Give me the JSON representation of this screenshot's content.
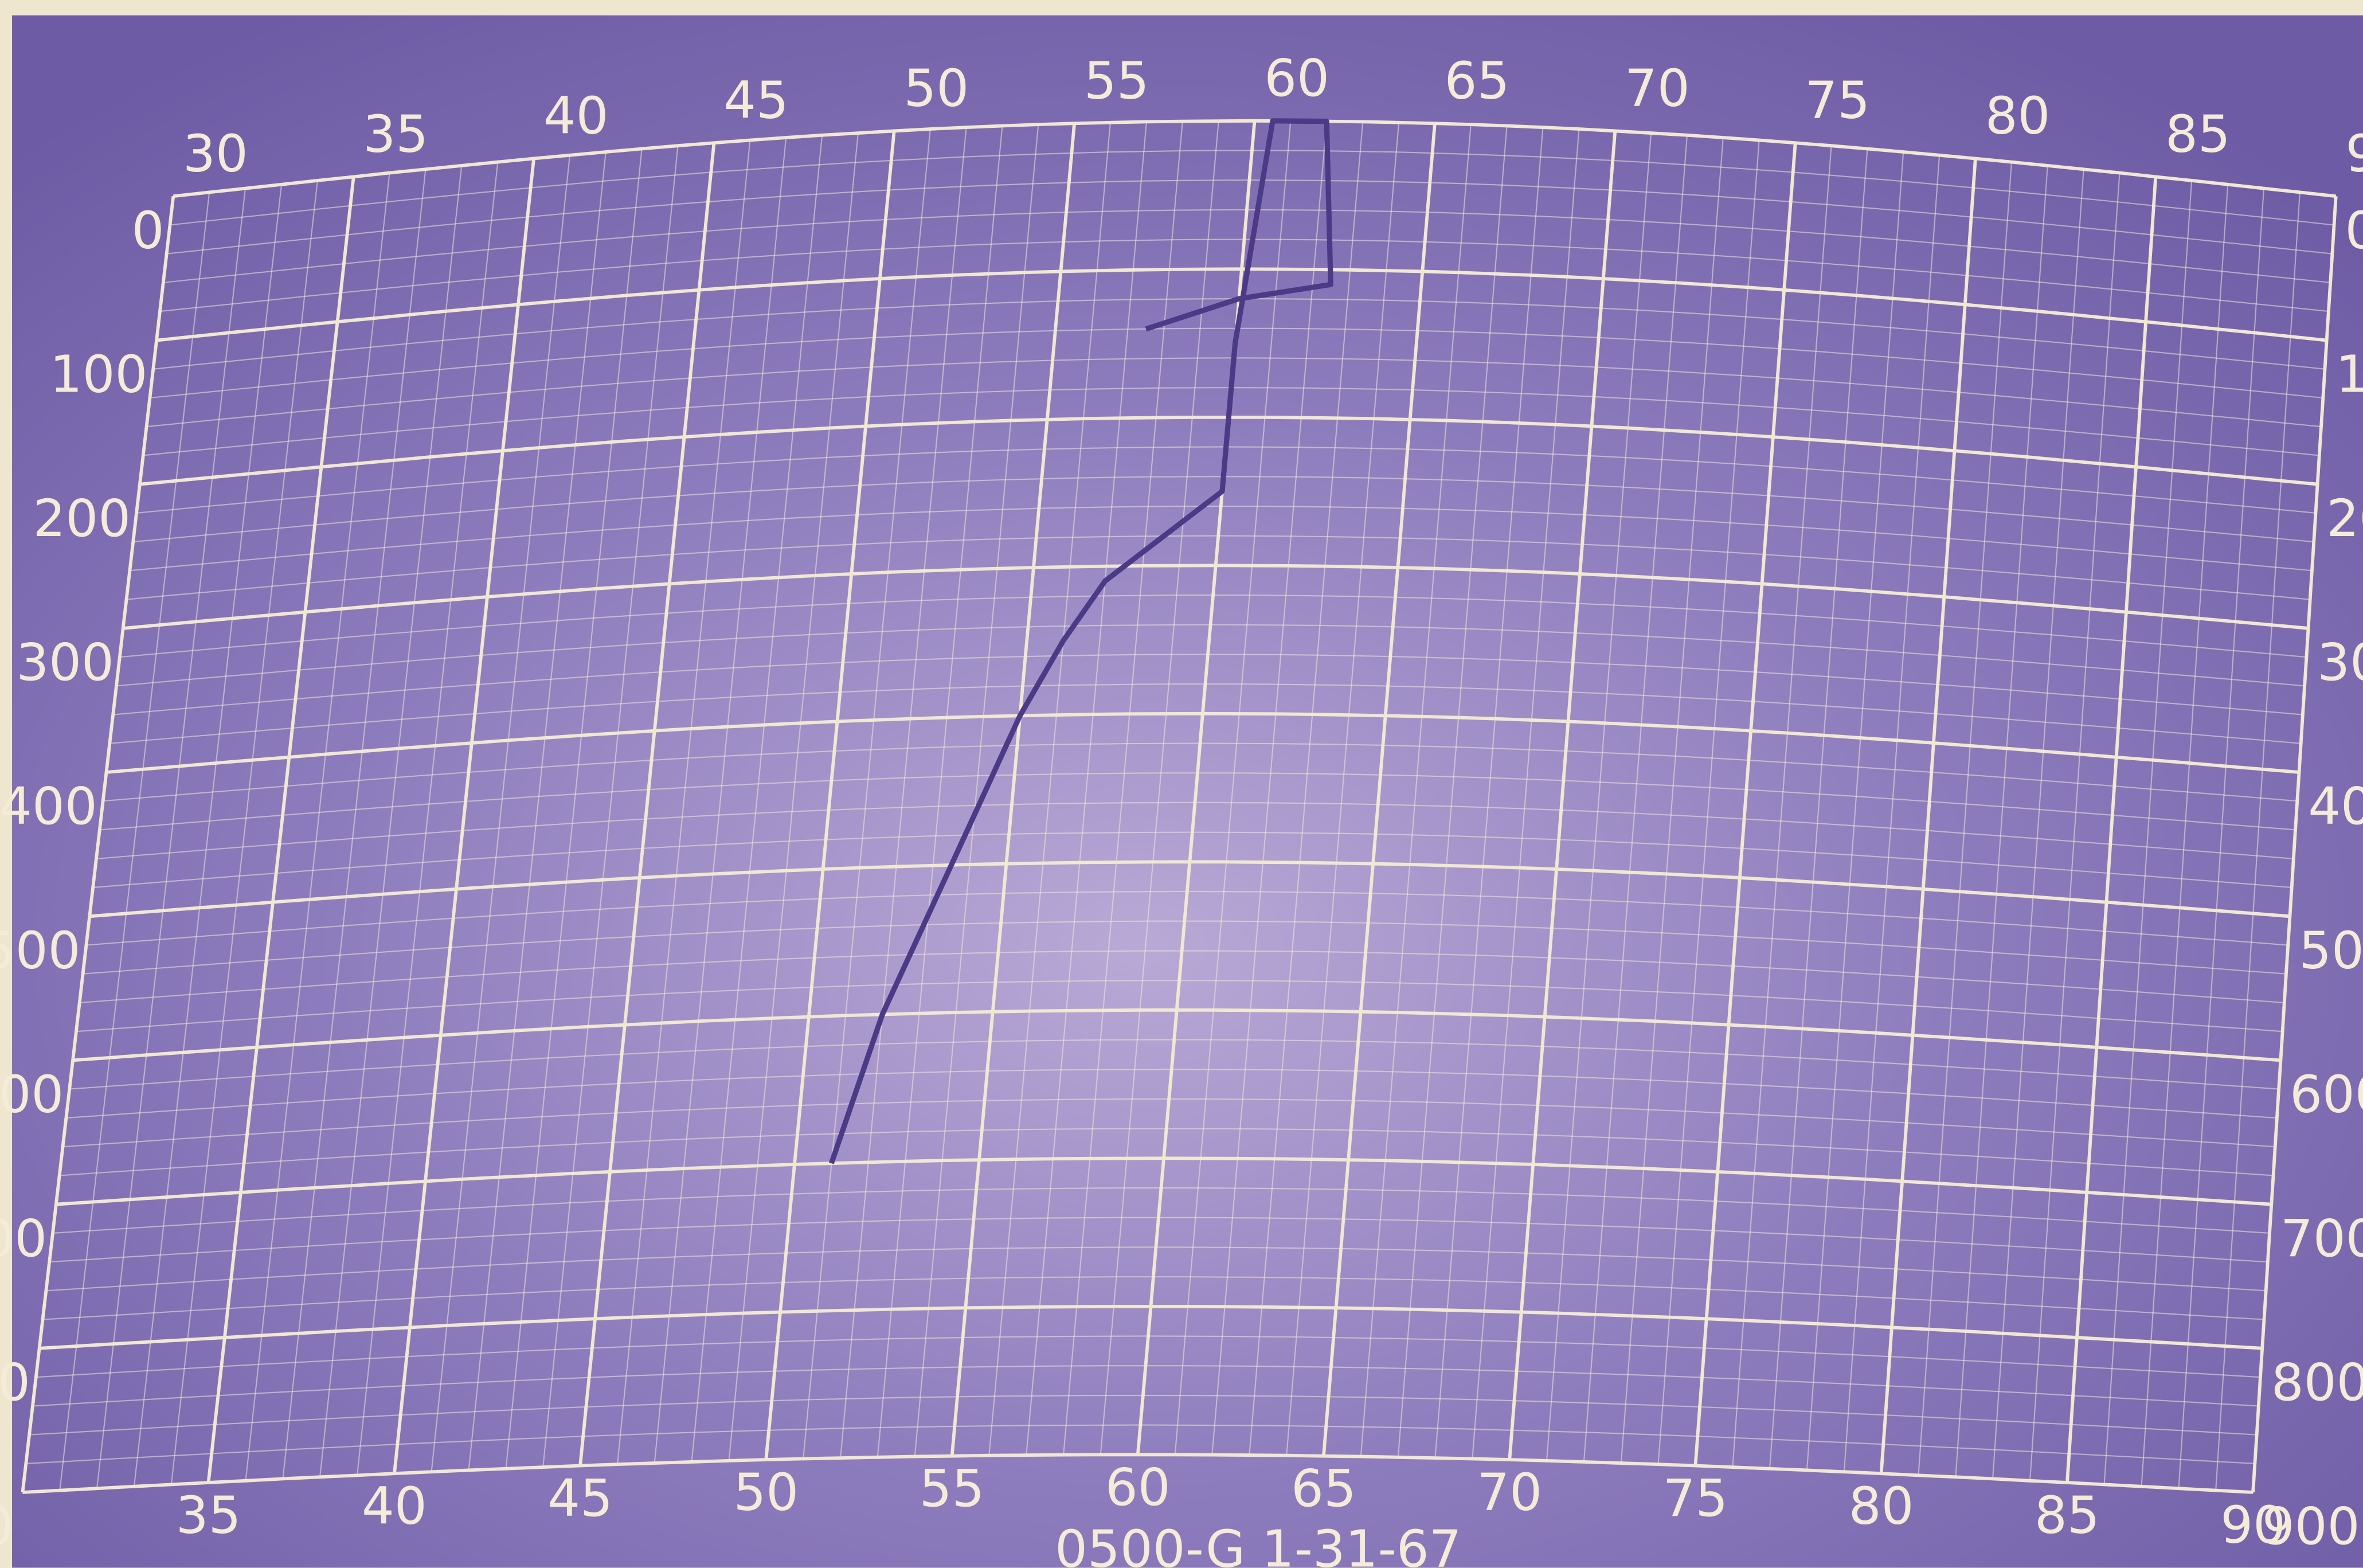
{
  "chart_data": {
    "type": "line",
    "xlim": [
      30,
      90
    ],
    "ylim": [
      0,
      900
    ],
    "xticks": [
      30,
      35,
      40,
      45,
      50,
      55,
      60,
      65,
      70,
      75,
      80,
      85,
      90
    ],
    "x2ticks": [
      35,
      40,
      45,
      50,
      55,
      60,
      65,
      70,
      75,
      80,
      85,
      90
    ],
    "yticks": [
      0,
      100,
      200,
      300,
      400,
      500,
      600,
      700,
      800,
      900
    ],
    "grid": true,
    "annotation": "0500-G 1-31-67",
    "series": [
      {
        "color": "#4b3b86",
        "x": [
          51,
          52,
          53.5,
          55,
          56,
          57,
          58.5,
          60,
          60,
          60.5,
          62,
          62.5,
          60,
          57.5
        ],
        "values": [
          700,
          600,
          500,
          400,
          350,
          310,
          280,
          250,
          150,
          0,
          0,
          110,
          120,
          140
        ]
      }
    ]
  }
}
